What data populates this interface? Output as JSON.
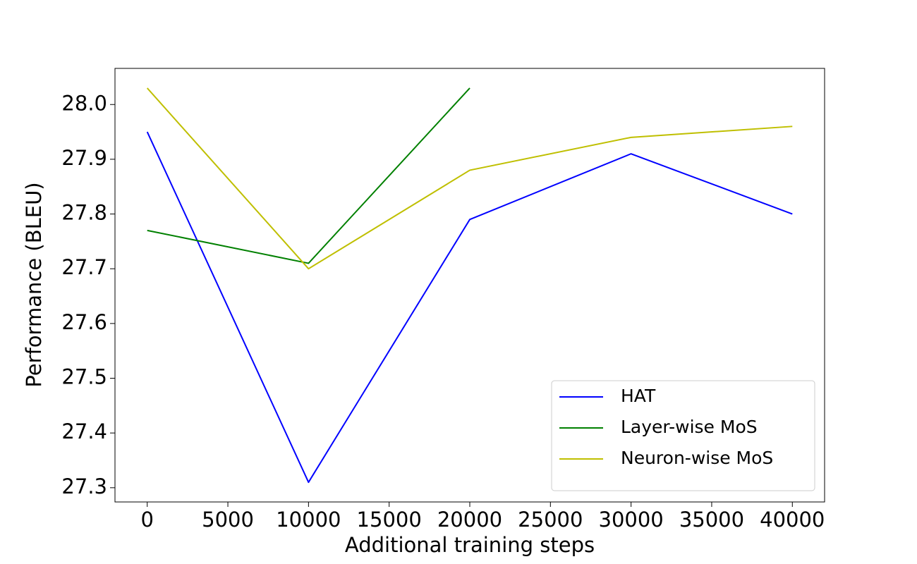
{
  "chart_data": {
    "type": "line",
    "xlabel": "Additional training steps",
    "ylabel": "Performance (BLEU)",
    "x": [
      0,
      10000,
      20000,
      30000,
      40000
    ],
    "series": [
      {
        "name": "HAT",
        "color": "#0000ff",
        "values": [
          27.95,
          27.31,
          27.79,
          27.91,
          27.8
        ]
      },
      {
        "name": "Layer-wise MoS",
        "color": "#008000",
        "values": [
          27.77,
          27.71,
          28.03,
          null,
          null
        ]
      },
      {
        "name": "Neuron-wise MoS",
        "color": "#bfbf00",
        "values": [
          28.03,
          27.7,
          27.88,
          27.94,
          27.96
        ]
      }
    ],
    "xlim": [
      -2000,
      42000
    ],
    "xticks": [
      0,
      5000,
      10000,
      15000,
      20000,
      25000,
      30000,
      35000,
      40000
    ],
    "ylim": [
      27.274,
      28.066
    ],
    "yticks": [
      27.3,
      27.4,
      27.5,
      27.6,
      27.7,
      27.8,
      27.9,
      {
        "value": 28,
        "label": "28.0"
      }
    ],
    "grid": false,
    "legend": "lower right"
  }
}
